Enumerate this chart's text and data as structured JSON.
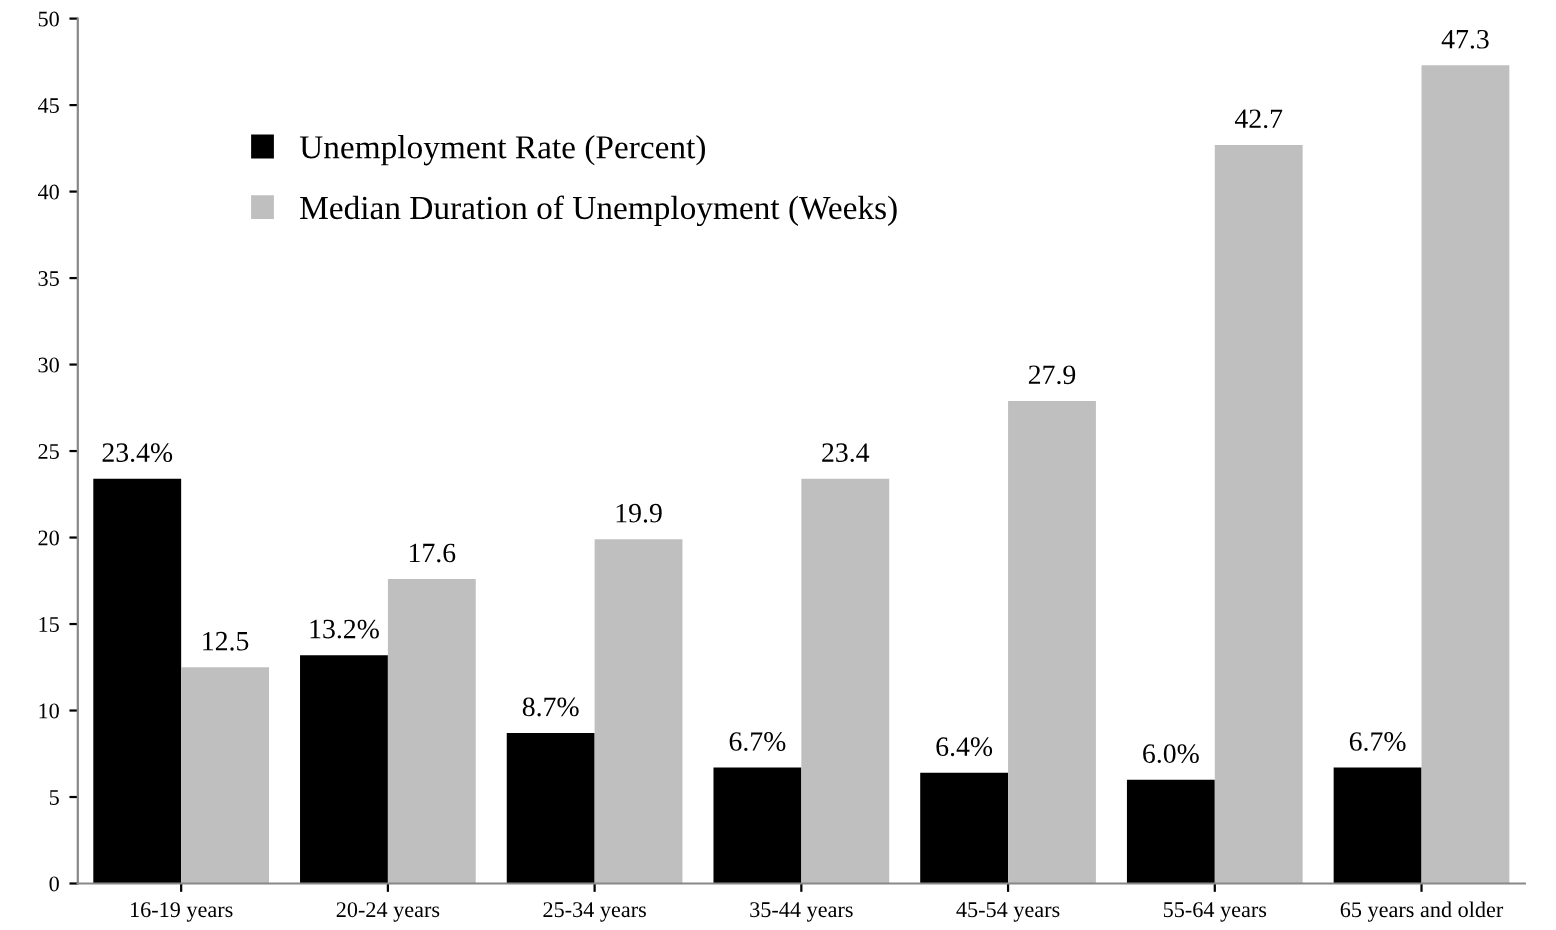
{
  "chart_data": {
    "type": "bar",
    "categories": [
      "16-19 years",
      "20-24 years",
      "25-34 years",
      "35-44 years",
      "45-54 years",
      "55-64 years",
      "65 years and older"
    ],
    "series": [
      {
        "name": "Unemployment Rate (Percent)",
        "color": "#000000",
        "values": [
          23.4,
          13.2,
          8.7,
          6.7,
          6.4,
          6.0,
          6.7
        ],
        "value_labels": [
          "23.4%",
          "13.2%",
          "8.7%",
          "6.7%",
          "6.4%",
          "6.0%",
          "6.7%"
        ]
      },
      {
        "name": "Median Duration of Unemployment (Weeks)",
        "color": "#bfbfbf",
        "values": [
          12.5,
          17.6,
          19.9,
          23.4,
          27.9,
          42.7,
          47.3
        ],
        "value_labels": [
          "12.5",
          "17.6",
          "19.9",
          "23.4",
          "27.9",
          "42.7",
          "47.3"
        ]
      }
    ],
    "ylim": [
      0,
      50
    ],
    "yticks": [
      0,
      5,
      10,
      15,
      20,
      25,
      30,
      35,
      40,
      45,
      50
    ],
    "grid": false,
    "legend": "top left"
  }
}
